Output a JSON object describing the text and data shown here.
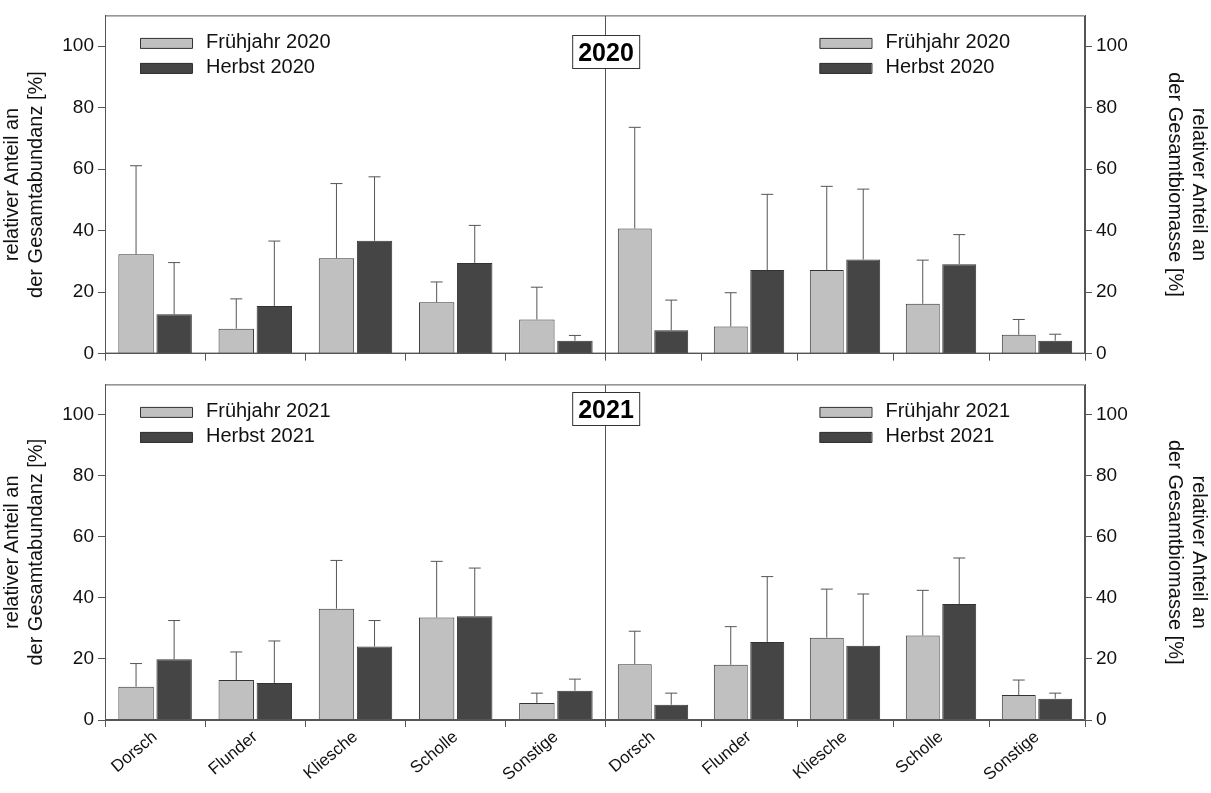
{
  "chart_data": [
    {
      "type": "bar",
      "title": "2020",
      "ylabel": "relativer Anteil an\nder Gesamtabundanz [%]",
      "categories": [
        null,
        null,
        null,
        null,
        null
      ],
      "series": [
        {
          "name": "Frühjahr 2020",
          "color": "#c0c0c0",
          "values": [
            32.3,
            8.1,
            31.0,
            16.7,
            11.1
          ],
          "errors": [
            [
              32.3,
              61.1
            ],
            [
              8.1,
              17.8
            ],
            [
              31.0,
              55.3
            ],
            [
              16.7,
              23.3
            ],
            [
              11.1,
              21.6
            ]
          ]
        },
        {
          "name": "Herbst 2020",
          "color": "#454545",
          "values": [
            12.8,
            15.5,
            36.7,
            29.5,
            4.2
          ],
          "errors": [
            [
              12.8,
              29.6
            ],
            [
              15.5,
              36.6
            ],
            [
              36.7,
              57.5
            ],
            [
              29.5,
              41.7
            ],
            [
              4.2,
              5.9
            ]
          ]
        }
      ],
      "ylim": [
        0,
        110
      ],
      "yticks": [
        0,
        20,
        40,
        60,
        80,
        100
      ],
      "legend": "top left",
      "grid": false,
      "tick_labels": "y"
    },
    {
      "type": "bar",
      "ylabel": "relativer Anteil an\nder Gesamtbiomasse [%]",
      "categories": [
        null,
        null,
        null,
        null,
        null
      ],
      "series": [
        {
          "name": "Frühjahr 2020",
          "color": "#c0c0c0",
          "values": [
            40.7,
            8.8,
            27.2,
            16.2,
            6.1
          ],
          "errors": [
            [
              40.7,
              73.6
            ],
            [
              8.8,
              19.8
            ],
            [
              27.2,
              54.4
            ],
            [
              16.2,
              30.4
            ],
            [
              6.1,
              11.1
            ]
          ]
        },
        {
          "name": "Herbst 2020",
          "color": "#454545",
          "values": [
            7.6,
            27.2,
            30.6,
            29.1,
            4.2
          ],
          "errors": [
            [
              7.6,
              17.4
            ],
            [
              27.2,
              51.8
            ],
            [
              30.6,
              53.5
            ],
            [
              29.1,
              38.7
            ],
            [
              4.2,
              6.3
            ]
          ]
        }
      ],
      "ylim": [
        0,
        110
      ],
      "yticks": [
        0,
        20,
        40,
        60,
        80,
        100
      ],
      "legend": "top right",
      "grid": false,
      "tick_labels": "y"
    },
    {
      "type": "bar",
      "title": "2021",
      "ylabel": "relativer Anteil an\nder Gesamtabundanz [%]",
      "categories": [
        "Dorsch",
        "Flunder",
        "Kliesche",
        "Scholle",
        "Sonstige"
      ],
      "series": [
        {
          "name": "Frühjahr 2021",
          "color": "#c0c0c0",
          "values": [
            10.9,
            13.1,
            36.5,
            33.6,
            5.6
          ],
          "errors": [
            [
              10.9,
              18.5
            ],
            [
              13.1,
              22.3
            ],
            [
              36.5,
              52.3
            ],
            [
              33.6,
              52.0
            ],
            [
              5.6,
              8.8
            ]
          ]
        },
        {
          "name": "Herbst 2021",
          "color": "#454545",
          "values": [
            19.9,
            12.1,
            24.1,
            34.0,
            9.6
          ],
          "errors": [
            [
              19.9,
              32.6
            ],
            [
              12.1,
              25.9
            ],
            [
              24.1,
              32.6
            ],
            [
              34.0,
              49.8
            ],
            [
              9.6,
              13.4
            ]
          ]
        }
      ],
      "ylim": [
        0,
        110
      ],
      "yticks": [
        0,
        20,
        40,
        60,
        80,
        100
      ],
      "legend": "top left",
      "grid": false
    },
    {
      "type": "bar",
      "ylabel": "relativer Anteil an\nder Gesamtbiomasse [%]",
      "categories": [
        "Dorsch",
        "Flunder",
        "Kliesche",
        "Scholle",
        "Sonstige"
      ],
      "series": [
        {
          "name": "Frühjahr 2021",
          "color": "#c0c0c0",
          "values": [
            18.3,
            18.1,
            27.0,
            27.7,
            8.2
          ],
          "errors": [
            [
              18.3,
              29.1
            ],
            [
              18.1,
              30.6
            ],
            [
              27.0,
              42.9
            ],
            [
              27.7,
              42.5
            ],
            [
              8.2,
              13.1
            ]
          ]
        },
        {
          "name": "Herbst 2021",
          "color": "#454545",
          "values": [
            5.0,
            25.6,
            24.3,
            38.0,
            7.0
          ],
          "errors": [
            [
              5.0,
              8.8
            ],
            [
              25.6,
              47.0
            ],
            [
              24.3,
              41.3
            ],
            [
              38.0,
              53.1
            ],
            [
              7.0,
              8.8
            ]
          ]
        }
      ],
      "ylim": [
        0,
        110
      ],
      "yticks": [
        0,
        20,
        40,
        60,
        80,
        100
      ],
      "legend": "top right",
      "grid": false
    }
  ]
}
